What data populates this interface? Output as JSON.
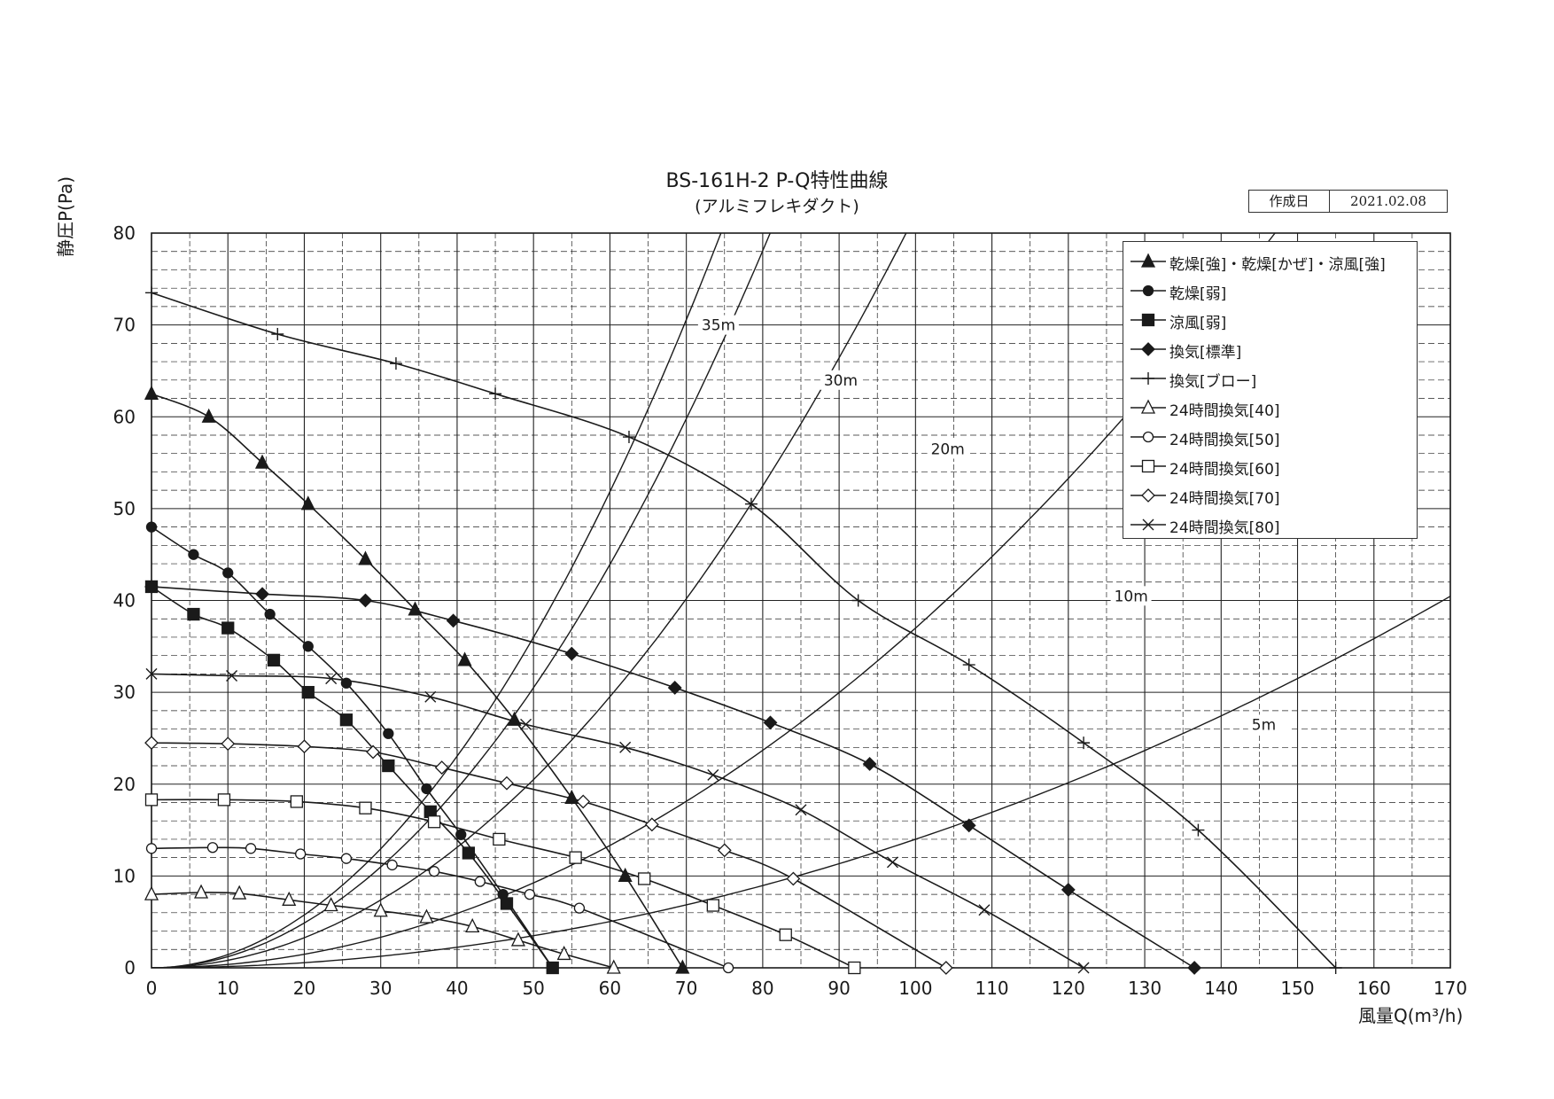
{
  "header": {
    "title": "BS-161H-2  P-Q特性曲線",
    "subtitle": "(アルミフレキダクト)",
    "date_label": "作成日",
    "date_value": "2021.02.08"
  },
  "chart_data": {
    "type": "line",
    "title": "BS-161H-2  P-Q特性曲線",
    "subtitle": "(アルミフレキダクト)",
    "xlabel": "風量Q(m³/h)",
    "ylabel": "静圧P(Pa)",
    "xlim": [
      0,
      170
    ],
    "ylim": [
      0,
      80
    ],
    "xticks": [
      0,
      10,
      20,
      30,
      40,
      50,
      60,
      70,
      80,
      90,
      100,
      110,
      120,
      130,
      140,
      150,
      160,
      170
    ],
    "yticks": [
      0,
      10,
      20,
      30,
      40,
      50,
      60,
      70,
      80
    ],
    "grid": true,
    "legend_position": "top-right",
    "series": [
      {
        "name": "乾燥[強]・乾燥[かぜ]・涼風[強]",
        "marker": "triangle-filled",
        "points": [
          [
            0,
            62.5
          ],
          [
            7.5,
            60
          ],
          [
            14.5,
            55
          ],
          [
            20.5,
            50.5
          ],
          [
            28,
            44.5
          ],
          [
            34.5,
            39
          ],
          [
            41,
            33.5
          ],
          [
            47.5,
            27
          ],
          [
            55,
            18.5
          ],
          [
            62,
            10
          ],
          [
            69.5,
            0
          ]
        ]
      },
      {
        "name": "乾燥[弱]",
        "marker": "circle-filled",
        "points": [
          [
            0,
            48
          ],
          [
            5.5,
            45
          ],
          [
            10,
            43
          ],
          [
            15.5,
            38.5
          ],
          [
            20.5,
            35
          ],
          [
            25.5,
            31
          ],
          [
            31,
            25.5
          ],
          [
            36,
            19.5
          ],
          [
            40.5,
            14.5
          ],
          [
            46,
            8
          ],
          [
            52.5,
            0
          ]
        ]
      },
      {
        "name": "涼風[弱]",
        "marker": "square-filled",
        "points": [
          [
            0,
            41.5
          ],
          [
            5.5,
            38.5
          ],
          [
            10,
            37
          ],
          [
            16,
            33.5
          ],
          [
            20.5,
            30
          ],
          [
            25.5,
            27
          ],
          [
            31,
            22
          ],
          [
            36.5,
            17
          ],
          [
            41.5,
            12.5
          ],
          [
            46.5,
            7
          ],
          [
            52.5,
            0
          ]
        ]
      },
      {
        "name": "換気[標準]",
        "marker": "diamond-filled",
        "points": [
          [
            0,
            41.5
          ],
          [
            14.5,
            40.7
          ],
          [
            28,
            40
          ],
          [
            39.5,
            37.8
          ],
          [
            55,
            34.2
          ],
          [
            68.5,
            30.5
          ],
          [
            81,
            26.7
          ],
          [
            94,
            22.2
          ],
          [
            107,
            15.5
          ],
          [
            120,
            8.5
          ],
          [
            136.5,
            0
          ]
        ]
      },
      {
        "name": "換気[ブロー]",
        "marker": "plus",
        "points": [
          [
            0,
            73.5
          ],
          [
            16.5,
            69
          ],
          [
            32,
            65.8
          ],
          [
            45,
            62.5
          ],
          [
            62.5,
            57.8
          ],
          [
            78.5,
            50.5
          ],
          [
            92.5,
            40
          ],
          [
            107,
            33
          ],
          [
            122,
            24.5
          ],
          [
            137,
            15
          ],
          [
            155,
            0
          ]
        ]
      },
      {
        "name": "24時間換気[40]",
        "marker": "triangle-open",
        "points": [
          [
            0,
            8
          ],
          [
            6.5,
            8.2
          ],
          [
            11.5,
            8.1
          ],
          [
            18,
            7.4
          ],
          [
            23.5,
            6.8
          ],
          [
            30,
            6.2
          ],
          [
            36,
            5.5
          ],
          [
            42,
            4.5
          ],
          [
            48,
            3
          ],
          [
            54,
            1.5
          ],
          [
            60.5,
            0
          ]
        ]
      },
      {
        "name": "24時間換気[50]",
        "marker": "circle-open",
        "points": [
          [
            0,
            13
          ],
          [
            8,
            13.1
          ],
          [
            13,
            13
          ],
          [
            19.5,
            12.4
          ],
          [
            25.5,
            11.9
          ],
          [
            31.5,
            11.2
          ],
          [
            37,
            10.5
          ],
          [
            43,
            9.4
          ],
          [
            49.5,
            8
          ],
          [
            56,
            6.5
          ],
          [
            75.5,
            0
          ]
        ]
      },
      {
        "name": "24時間換気[60]",
        "marker": "square-open",
        "points": [
          [
            0,
            18.3
          ],
          [
            9.5,
            18.3
          ],
          [
            19,
            18.1
          ],
          [
            28,
            17.4
          ],
          [
            37,
            15.9
          ],
          [
            45.5,
            14
          ],
          [
            55.5,
            12
          ],
          [
            64.5,
            9.7
          ],
          [
            73.5,
            6.8
          ],
          [
            83,
            3.6
          ],
          [
            92,
            0
          ]
        ]
      },
      {
        "name": "24時間換気[70]",
        "marker": "diamond-open",
        "points": [
          [
            0,
            24.5
          ],
          [
            10,
            24.4
          ],
          [
            20,
            24.1
          ],
          [
            29,
            23.5
          ],
          [
            38,
            21.8
          ],
          [
            46.5,
            20.1
          ],
          [
            56.5,
            18.1
          ],
          [
            65.5,
            15.6
          ],
          [
            75,
            12.8
          ],
          [
            84,
            9.7
          ],
          [
            104,
            0
          ]
        ]
      },
      {
        "name": "24時間換気[80]",
        "marker": "x",
        "points": [
          [
            0,
            32
          ],
          [
            10.5,
            31.8
          ],
          [
            23.5,
            31.5
          ],
          [
            36.5,
            29.5
          ],
          [
            49,
            26.5
          ],
          [
            62,
            24
          ],
          [
            73.5,
            21
          ],
          [
            85,
            17.2
          ],
          [
            97,
            11.5
          ],
          [
            109,
            6.3
          ],
          [
            122,
            0
          ]
        ]
      }
    ],
    "duct_curves": [
      {
        "name": "35m",
        "k": 0.0144
      },
      {
        "name": "30m",
        "k": 0.0122
      },
      {
        "name": "20m",
        "k": 0.0082
      },
      {
        "name": "10m",
        "k": 0.0037
      },
      {
        "name": "5m",
        "k": 0.0014
      }
    ],
    "colors": {
      "line": "#1a1a1a",
      "grid": "#222222",
      "background": "#ffffff"
    }
  }
}
